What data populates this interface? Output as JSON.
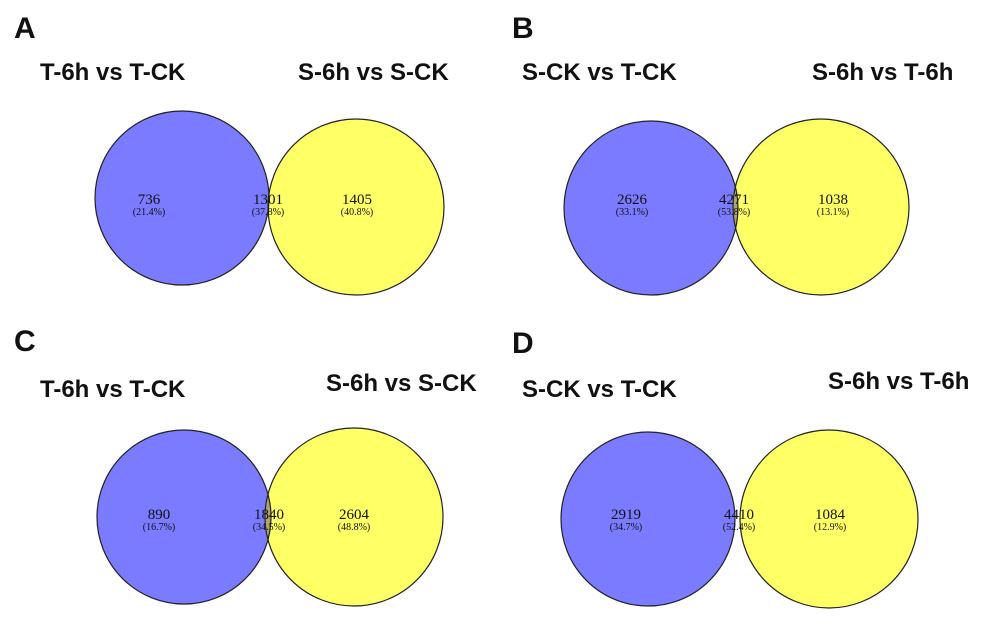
{
  "colors": {
    "left": "#7b7bff",
    "right": "#ffff66",
    "overlap": "#ada56c",
    "stroke": "#222222"
  },
  "panels": [
    {
      "letter": "A",
      "left_label": "T-6h vs T-CK",
      "right_label": "S-6h vs S-CK",
      "left": {
        "count": "736",
        "pct": "(21.4%)"
      },
      "overlap": {
        "count": "1301",
        "pct": "(37.8%)"
      },
      "right": {
        "count": "1405",
        "pct": "(40.8%)"
      }
    },
    {
      "letter": "B",
      "left_label": "S-CK vs T-CK",
      "right_label": "S-6h vs T-6h",
      "left": {
        "count": "2626",
        "pct": "(33.1%)"
      },
      "overlap": {
        "count": "4271",
        "pct": "(53.8%)"
      },
      "right": {
        "count": "1038",
        "pct": "(13.1%)"
      }
    },
    {
      "letter": "C",
      "left_label": "T-6h vs T-CK",
      "right_label": "S-6h vs S-CK",
      "left": {
        "count": "890",
        "pct": "(16.7%)"
      },
      "overlap": {
        "count": "1840",
        "pct": "(34.5%)"
      },
      "right": {
        "count": "2604",
        "pct": "(48.8%)"
      }
    },
    {
      "letter": "D",
      "left_label": "S-CK vs T-CK",
      "right_label": "S-6h vs T-6h",
      "left": {
        "count": "2919",
        "pct": "(34.7%)"
      },
      "overlap": {
        "count": "4410",
        "pct": "(52.4%)"
      },
      "right": {
        "count": "1084",
        "pct": "(12.9%)"
      }
    }
  ]
}
